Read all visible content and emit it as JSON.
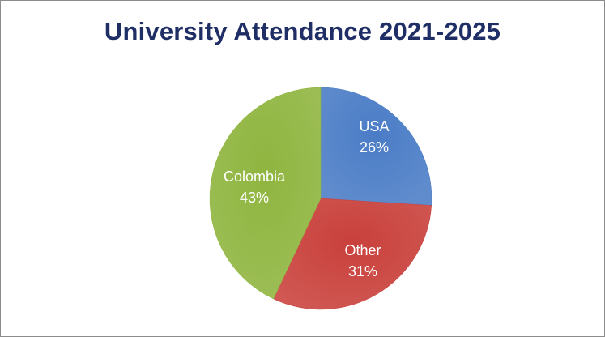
{
  "chart_data": {
    "type": "pie",
    "title": "University Attendance 2021-2025",
    "categories": [
      "USA",
      "Other",
      "Colombia"
    ],
    "values": [
      26,
      31,
      43
    ],
    "value_labels": [
      "26%",
      "31%",
      "43%"
    ],
    "colors": [
      "#4a7cc6",
      "#c9403b",
      "#8fb53f"
    ],
    "legend": "none"
  }
}
